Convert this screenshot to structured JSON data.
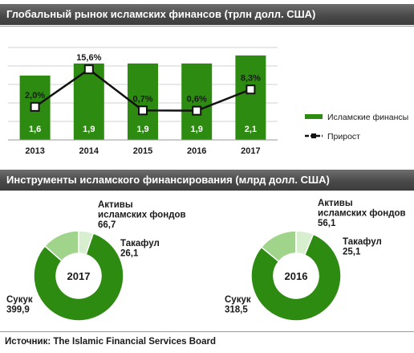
{
  "chart_data": [
    {
      "type": "bar",
      "title": "Глобальный рынок исламских финансов (трлн долл. США)",
      "categories": [
        "2013",
        "2014",
        "2015",
        "2016",
        "2017"
      ],
      "series": [
        {
          "name": "Исламские финансы",
          "type": "bar",
          "values": [
            1.6,
            1.9,
            1.9,
            1.9,
            2.1
          ],
          "labels": [
            "1,6",
            "1,9",
            "1,9",
            "1,9",
            "2,1"
          ],
          "color": "#2e8b12"
        },
        {
          "name": "Прирост",
          "type": "line",
          "values": [
            2.0,
            15.6,
            0.7,
            0.6,
            8.3
          ],
          "labels": [
            "2,0%",
            "15,6%",
            "0,7%",
            "0,6%",
            "8,3%"
          ],
          "color": "#111111"
        }
      ],
      "legend_position": "right",
      "grid": true
    },
    {
      "type": "pie",
      "title": "Инструменты исламского финансирования (млрд долл. США)",
      "center_label": "2017",
      "slices": [
        {
          "label": [
            "Сукук",
            "399,9"
          ],
          "value": 399.9,
          "color": "#2e8b12"
        },
        {
          "label": [
            "Активы",
            "исламских фондов",
            "66,7"
          ],
          "value": 66.7,
          "color": "#9fd48a"
        },
        {
          "label": [
            "Такафул",
            "26,1"
          ],
          "value": 26.1,
          "color": "#d8efcf"
        }
      ]
    },
    {
      "type": "pie",
      "center_label": "2016",
      "slices": [
        {
          "label": [
            "Сукук",
            "318,5"
          ],
          "value": 318.5,
          "color": "#2e8b12"
        },
        {
          "label": [
            "Активы",
            "исламских фондов",
            "56,1"
          ],
          "value": 56.1,
          "color": "#9fd48a"
        },
        {
          "label": [
            "Такафул",
            "25,1"
          ],
          "value": 25.1,
          "color": "#d8efcf"
        }
      ]
    }
  ],
  "source": "Источник:  The Islamic Financial  Services Board"
}
